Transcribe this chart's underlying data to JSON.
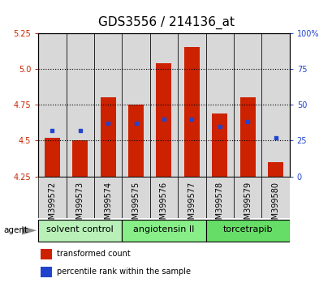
{
  "title": "GDS3556 / 214136_at",
  "samples": [
    "GSM399572",
    "GSM399573",
    "GSM399574",
    "GSM399575",
    "GSM399576",
    "GSM399577",
    "GSM399578",
    "GSM399579",
    "GSM399580"
  ],
  "transformed_count": [
    4.52,
    4.5,
    4.8,
    4.75,
    5.04,
    5.15,
    4.69,
    4.8,
    4.35
  ],
  "percentile_rank": [
    32,
    32,
    37,
    37,
    40,
    40,
    35,
    38,
    27
  ],
  "groups": [
    {
      "label": "solvent control",
      "indices": [
        0,
        1,
        2
      ],
      "color": "#b8f0b8"
    },
    {
      "label": "angiotensin II",
      "indices": [
        3,
        4,
        5
      ],
      "color": "#88ee88"
    },
    {
      "label": "torcetrapib",
      "indices": [
        6,
        7,
        8
      ],
      "color": "#66dd66"
    }
  ],
  "ylim_left": [
    4.25,
    5.25
  ],
  "ylim_right": [
    0,
    100
  ],
  "yticks_left": [
    4.25,
    4.5,
    4.75,
    5.0,
    5.25
  ],
  "yticks_right": [
    0,
    25,
    50,
    75,
    100
  ],
  "ytick_labels_right": [
    "0",
    "25",
    "50",
    "75",
    "100%"
  ],
  "bar_color": "#cc2200",
  "blue_color": "#2244cc",
  "bar_bottom": 4.25,
  "tick_fontsize": 7,
  "bar_column_color": "#d8d8d8",
  "agent_label": "agent",
  "legend_items": [
    {
      "label": "transformed count",
      "color": "#cc2200"
    },
    {
      "label": "percentile rank within the sample",
      "color": "#2244cc"
    }
  ]
}
